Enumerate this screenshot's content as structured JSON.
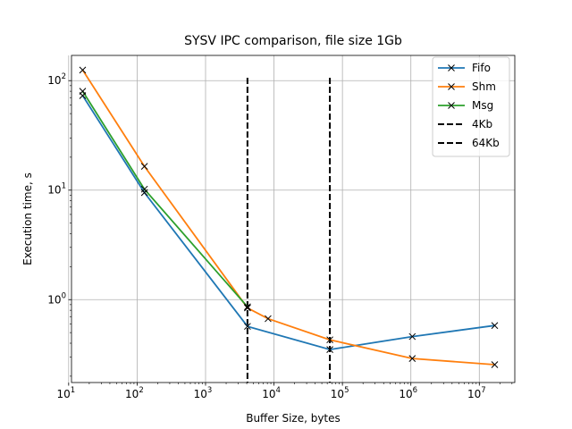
{
  "chart_data": {
    "type": "line",
    "title": "SYSV IPC comparison, file size 1Gb",
    "xlabel": "Buffer Size, bytes",
    "ylabel": "Execution time, s",
    "xscale": "log",
    "yscale": "log",
    "xlim": [
      11,
      33000000
    ],
    "ylim": [
      0.175,
      170
    ],
    "grid": true,
    "legend_position": "top-right",
    "x_ticks": [
      {
        "value": 10,
        "base": "10",
        "exp": "1"
      },
      {
        "value": 100,
        "base": "10",
        "exp": "2"
      },
      {
        "value": 1000,
        "base": "10",
        "exp": "3"
      },
      {
        "value": 10000,
        "base": "10",
        "exp": "4"
      },
      {
        "value": 100000,
        "base": "10",
        "exp": "5"
      },
      {
        "value": 1000000,
        "base": "10",
        "exp": "6"
      },
      {
        "value": 10000000,
        "base": "10",
        "exp": "7"
      }
    ],
    "y_ticks": [
      {
        "value": 1,
        "base": "10",
        "exp": "0"
      },
      {
        "value": 10,
        "base": "10",
        "exp": "1"
      },
      {
        "value": 100,
        "base": "10",
        "exp": "2"
      }
    ],
    "series": [
      {
        "name": "Fifo",
        "color": "#1f77b4",
        "marker": "x",
        "points": [
          [
            16,
            73
          ],
          [
            128,
            9.5
          ],
          [
            4096,
            0.57
          ],
          [
            65536,
            0.35
          ],
          [
            1048576,
            0.46
          ],
          [
            16777216,
            0.58
          ]
        ]
      },
      {
        "name": "Shm",
        "color": "#ff7f0e",
        "marker": "x",
        "points": [
          [
            16,
            125
          ],
          [
            128,
            16.5
          ],
          [
            4096,
            0.84
          ],
          [
            8192,
            0.67
          ],
          [
            65536,
            0.43
          ],
          [
            1048576,
            0.29
          ],
          [
            16777216,
            0.255
          ]
        ]
      },
      {
        "name": "Msg",
        "color": "#2ca02c",
        "marker": "x",
        "points": [
          [
            16,
            80
          ],
          [
            128,
            10.2
          ],
          [
            4096,
            0.86
          ]
        ]
      }
    ],
    "vlines": [
      {
        "name": "4Kb",
        "x": 4096,
        "color": "#000000",
        "style": "dashed"
      },
      {
        "name": "64Kb",
        "x": 65536,
        "color": "#000000",
        "style": "dashed"
      }
    ]
  }
}
